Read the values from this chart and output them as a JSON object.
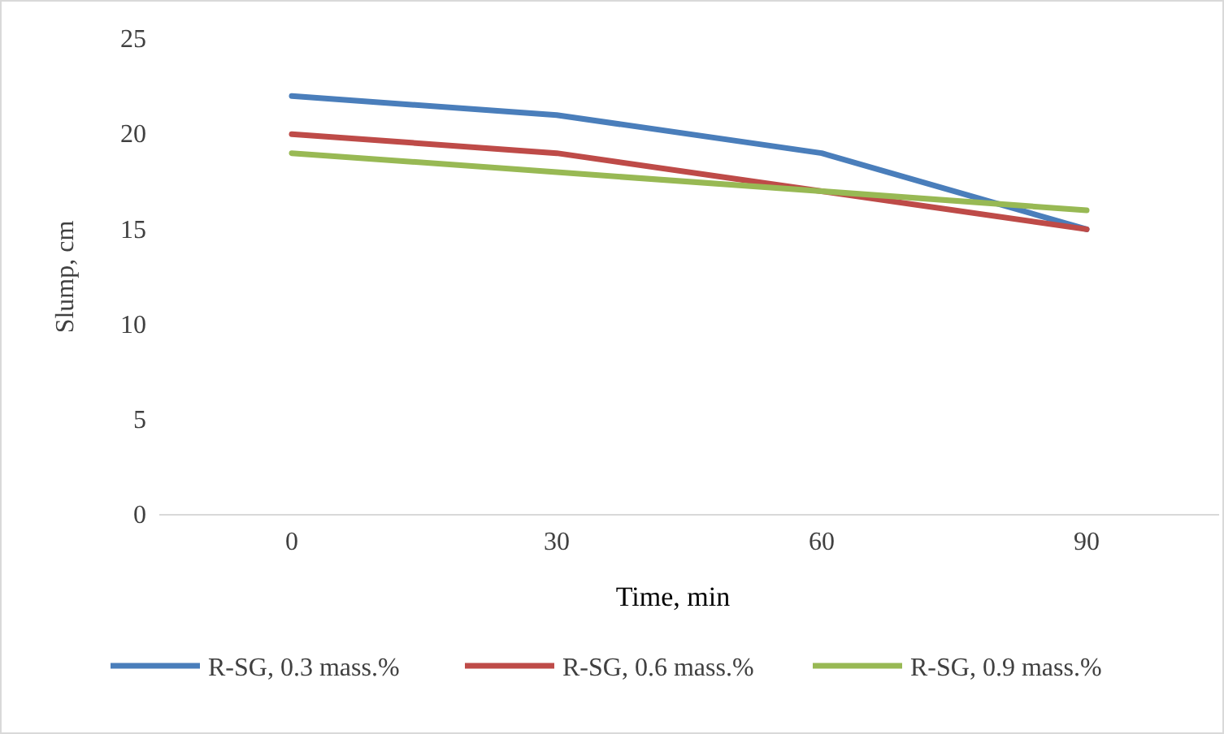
{
  "chart_data": {
    "type": "line",
    "xlabel": "Time, min",
    "ylabel": "Slump, cm",
    "categories": [
      "0",
      "30",
      "60",
      "90"
    ],
    "ylim": [
      0,
      25
    ],
    "yticks": [
      0,
      5,
      10,
      15,
      20,
      25
    ],
    "grid": false,
    "legend": "bottom",
    "marker": "none",
    "line_style": "solid",
    "series": [
      {
        "name": "R-SG, 0.3 mass.%",
        "color": "#4a7ebb",
        "values": [
          22,
          21,
          19,
          15
        ]
      },
      {
        "name": "R-SG, 0.6 mass.%",
        "color": "#be4b48",
        "values": [
          20,
          19,
          17,
          15
        ]
      },
      {
        "name": "R-SG, 0.9 mass.%",
        "color": "#98b954",
        "values": [
          19,
          18,
          17,
          16
        ]
      }
    ]
  }
}
